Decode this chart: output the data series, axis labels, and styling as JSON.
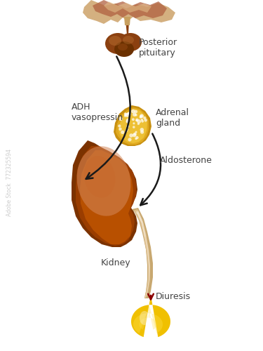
{
  "background_color": "#ffffff",
  "labels": {
    "posterior_pituitary": "Posterior\npituitary",
    "adh": "ADH\nvasopressin",
    "adrenal_gland": "Adrenal\ngland",
    "aldosterone": "Aldosterone",
    "kidney": "Kidney",
    "diuresis": "Diuresis"
  },
  "colors": {
    "kidney_dark": "#7B3200",
    "kidney_mid": "#9A3D00",
    "kidney_light": "#B85000",
    "kidney_highlight": "#C8682A",
    "kidney_specular": "#D4885A",
    "adrenal_base": "#C89010",
    "adrenal_yellow": "#E0AA20",
    "adrenal_light": "#F5CC40",
    "adrenal_dot": "#FFFFFF",
    "pituitary_dark": "#6B3000",
    "pituitary_brown": "#8B4010",
    "pituitary_mid": "#A05018",
    "pituitary_light": "#C07838",
    "stalk_tan": "#C8A060",
    "tissue_tan": "#D4B080",
    "tissue_red": "#B06040",
    "tissue_light": "#E8C890",
    "ureter_dark": "#C8A870",
    "ureter_mid": "#DEC090",
    "ureter_light": "#F0DEC0",
    "ureter_white": "#FAF0E0",
    "drop_yellow": "#F0C000",
    "drop_light": "#FFE050",
    "drop_white": "#FFFFF0",
    "arrow_color": "#1A1A1A",
    "diuresis_arrow": "#8B0000",
    "label_color": "#444444",
    "watermark": "#CCCCCC"
  },
  "figsize": [
    3.75,
    5.0
  ],
  "dpi": 100
}
